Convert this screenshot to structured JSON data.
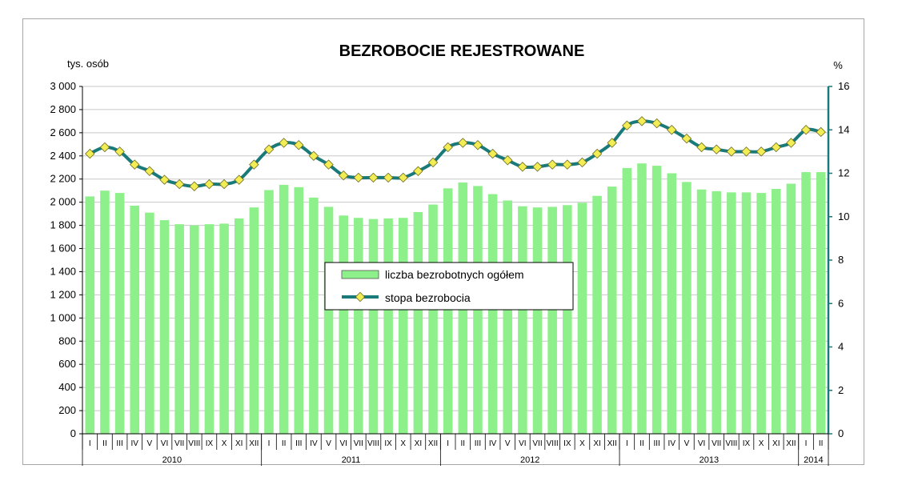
{
  "chart_data": {
    "type": "bar+line",
    "title": "BEZROBOCIE REJESTROWANE",
    "y_left_label": "tys. osób",
    "y_right_label": "%",
    "y_left_lim": [
      0,
      3000
    ],
    "y_left_ticks": [
      "0",
      "200",
      "400",
      "600",
      "800",
      "1 000",
      "1 200",
      "1 400",
      "1 600",
      "1 800",
      "2 000",
      "2 200",
      "2 400",
      "2 600",
      "2 800",
      "3 000"
    ],
    "y_right_lim": [
      0,
      16
    ],
    "y_right_ticks": [
      "0",
      "2",
      "4",
      "6",
      "8",
      "10",
      "12",
      "14",
      "16"
    ],
    "categories": [
      "I",
      "II",
      "III",
      "IV",
      "V",
      "VI",
      "VII",
      "VIII",
      "IX",
      "X",
      "XI",
      "XII",
      "I",
      "II",
      "III",
      "IV",
      "V",
      "VI",
      "VII",
      "VIII",
      "IX",
      "X",
      "XI",
      "XII",
      "I",
      "II",
      "III",
      "IV",
      "V",
      "VI",
      "VII",
      "VIII",
      "IX",
      "X",
      "XI",
      "XII",
      "I",
      "II",
      "III",
      "IV",
      "V",
      "VI",
      "VII",
      "VIII",
      "IX",
      "X",
      "XI",
      "XII",
      "I",
      "II"
    ],
    "years": [
      {
        "label": "2010",
        "count": 12
      },
      {
        "label": "2011",
        "count": 12
      },
      {
        "label": "2012",
        "count": 12
      },
      {
        "label": "2013",
        "count": 12
      },
      {
        "label": "2014",
        "count": 2
      }
    ],
    "series": [
      {
        "name": "liczba bezrobotnych ogółem",
        "kind": "bar",
        "axis": "left",
        "color": "#8ef08a",
        "values": [
          2050,
          2100,
          2080,
          1970,
          1910,
          1845,
          1810,
          1800,
          1810,
          1815,
          1860,
          1955,
          2105,
          2150,
          2130,
          2040,
          1960,
          1885,
          1865,
          1855,
          1860,
          1865,
          1915,
          1980,
          2120,
          2170,
          2140,
          2070,
          2015,
          1965,
          1955,
          1960,
          1975,
          1995,
          2055,
          2135,
          2295,
          2335,
          2315,
          2250,
          2175,
          2110,
          2095,
          2085,
          2085,
          2080,
          2115,
          2160,
          2260,
          2260
        ]
      },
      {
        "name": "stopa bezrobocia",
        "kind": "line",
        "axis": "right",
        "color": "#1a7a7a",
        "marker_color": "#f2ec55",
        "values": [
          12.9,
          13.2,
          13.0,
          12.4,
          12.1,
          11.7,
          11.5,
          11.4,
          11.5,
          11.5,
          11.7,
          12.4,
          13.1,
          13.4,
          13.3,
          12.8,
          12.4,
          11.9,
          11.8,
          11.8,
          11.8,
          11.8,
          12.1,
          12.5,
          13.2,
          13.4,
          13.3,
          12.9,
          12.6,
          12.3,
          12.3,
          12.4,
          12.4,
          12.5,
          12.9,
          13.4,
          14.2,
          14.4,
          14.3,
          14.0,
          13.6,
          13.2,
          13.1,
          13.0,
          13.0,
          13.0,
          13.2,
          13.4,
          14.0,
          13.9
        ]
      }
    ],
    "legend_position": "center",
    "grid": "horizontal"
  }
}
